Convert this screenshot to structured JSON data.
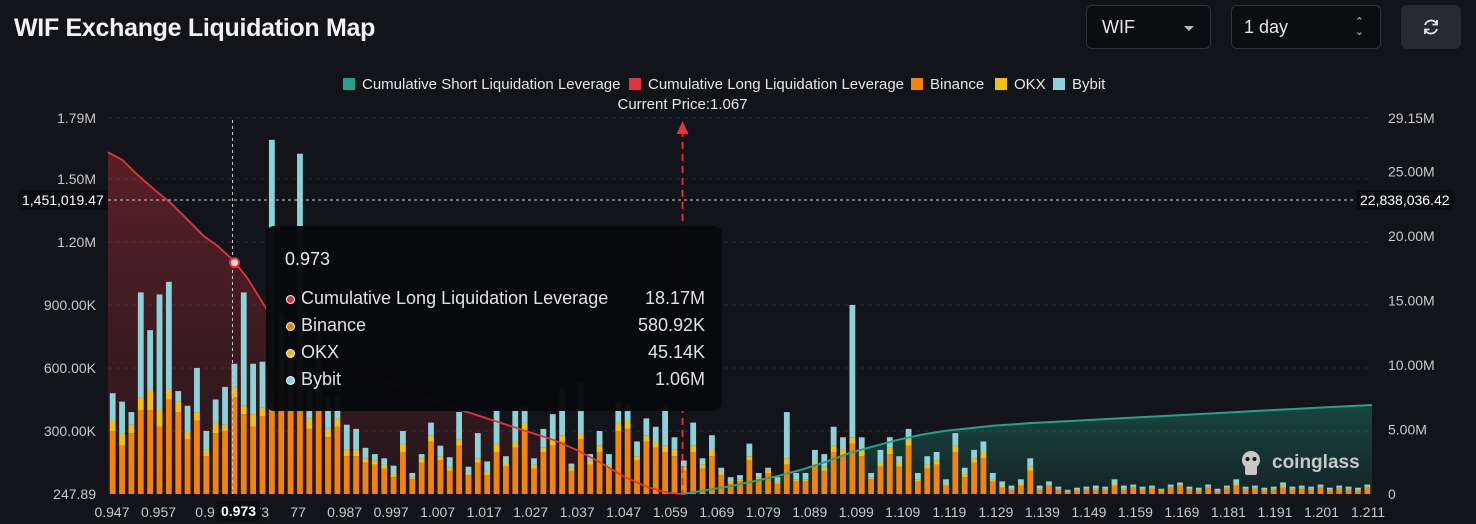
{
  "title": "WIF Exchange Liquidation Map",
  "controls": {
    "coin_select": "WIF",
    "period_select": "1 day",
    "refresh_icon": "refresh-icon"
  },
  "colors": {
    "short_line": "#26a189",
    "long_line": "#e0343e",
    "binance": "#f0840c",
    "okx": "#f2c014",
    "bybit": "#8cd2d8",
    "background": "#121419"
  },
  "legend": [
    {
      "label": "Cumulative Short Liquidation Leverage",
      "color": "#26a189"
    },
    {
      "label": "Cumulative Long Liquidation Leverage",
      "color": "#e0343e"
    },
    {
      "label": "Binance",
      "color": "#f0840c"
    },
    {
      "label": "OKX",
      "color": "#f2c014"
    },
    {
      "label": "Bybit",
      "color": "#8cd2d8"
    }
  ],
  "current_price_label": "Current Price:1.067",
  "crosshair": {
    "left_value": "1,451,019.47",
    "right_value": "22,838,036.42",
    "x_value": "0.973"
  },
  "tooltip": {
    "title": "0.973",
    "rows": [
      {
        "label": "Cumulative Long Liquidation Leverage",
        "value": "18.17M",
        "color": "#e0343e"
      },
      {
        "label": "Binance",
        "value": "580.92K",
        "color": "#f0840c"
      },
      {
        "label": "OKX",
        "value": "45.14K",
        "color": "#f2c014"
      },
      {
        "label": "Bybit",
        "value": "1.06M",
        "color": "#8cd2d8"
      }
    ]
  },
  "watermark": "coinglass",
  "chart_data": {
    "type": "bar",
    "title": "WIF Exchange Liquidation Map",
    "current_price": 1.067,
    "x_tick_labels": [
      "0.947",
      "0.957",
      "0.9",
      "0.973",
      "77",
      "0.987",
      "0.997",
      "1.007",
      "1.017",
      "1.027",
      "1.037",
      "1.047",
      "1.059",
      "1.069",
      "1.079",
      "1.089",
      "1.099",
      "1.109",
      "1.119",
      "1.129",
      "1.139",
      "1.149",
      "1.159",
      "1.169",
      "1.181",
      "1.191",
      "1.201",
      "1.211"
    ],
    "y_left_ticks": [
      "1.79M",
      "1.50M",
      "1.20M",
      "900.00K",
      "600.00K",
      "300.00K",
      "247.89"
    ],
    "y_left_values": [
      1790000,
      1500000,
      1200000,
      900000,
      600000,
      300000,
      247.89
    ],
    "y_right_ticks": [
      "29.15M",
      "25.00M",
      "20.00M",
      "15.00M",
      "10.00M",
      "5.00M",
      "0"
    ],
    "y_right_values": [
      29150000,
      25000000,
      20000000,
      15000000,
      10000000,
      5000000,
      0
    ],
    "left_axis_range": [
      247.89,
      1790000
    ],
    "right_axis_range": [
      0,
      29150000
    ],
    "bar_stack_order": [
      "Binance",
      "OKX",
      "Bybit"
    ],
    "bars": [
      [
        300000,
        50000,
        130000
      ],
      [
        230000,
        60000,
        150000
      ],
      [
        290000,
        40000,
        60000
      ],
      [
        400000,
        60000,
        500000
      ],
      [
        400000,
        100000,
        280000
      ],
      [
        320000,
        80000,
        550000
      ],
      [
        450000,
        50000,
        510000
      ],
      [
        390000,
        50000,
        50000
      ],
      [
        260000,
        40000,
        120000
      ],
      [
        350000,
        40000,
        210000
      ],
      [
        180000,
        30000,
        90000
      ],
      [
        290000,
        50000,
        110000
      ],
      [
        300000,
        30000,
        180000
      ],
      [
        460000,
        50000,
        110000
      ],
      [
        380000,
        40000,
        540000
      ],
      [
        320000,
        60000,
        240000
      ],
      [
        370000,
        40000,
        220000
      ],
      [
        580920,
        45140,
        1060000
      ],
      [
        500000,
        60000,
        300000
      ],
      [
        410000,
        50000,
        210000
      ],
      [
        560000,
        60000,
        1000000
      ],
      [
        310000,
        50000,
        180000
      ],
      [
        400000,
        60000,
        340000
      ],
      [
        270000,
        40000,
        150000
      ],
      [
        320000,
        40000,
        110000
      ],
      [
        180000,
        30000,
        120000
      ],
      [
        180000,
        30000,
        100000
      ],
      [
        150000,
        20000,
        50000
      ],
      [
        140000,
        20000,
        30000
      ],
      [
        120000,
        20000,
        30000
      ],
      [
        80000,
        15000,
        40000
      ],
      [
        200000,
        40000,
        60000
      ],
      [
        70000,
        10000,
        20000
      ],
      [
        150000,
        20000,
        20000
      ],
      [
        250000,
        30000,
        60000
      ],
      [
        160000,
        20000,
        50000
      ],
      [
        110000,
        15000,
        50000
      ],
      [
        230000,
        30000,
        130000
      ],
      [
        90000,
        10000,
        30000
      ],
      [
        150000,
        20000,
        120000
      ],
      [
        90000,
        15000,
        50000
      ],
      [
        200000,
        40000,
        160000
      ],
      [
        130000,
        20000,
        30000
      ],
      [
        220000,
        30000,
        150000
      ],
      [
        300000,
        40000,
        80000
      ],
      [
        120000,
        20000,
        30000
      ],
      [
        200000,
        20000,
        90000
      ],
      [
        230000,
        30000,
        120000
      ],
      [
        250000,
        30000,
        220000
      ],
      [
        110000,
        15000,
        20000
      ],
      [
        260000,
        30000,
        240000
      ],
      [
        140000,
        20000,
        30000
      ],
      [
        200000,
        30000,
        70000
      ],
      [
        120000,
        20000,
        50000
      ],
      [
        300000,
        40000,
        100000
      ],
      [
        310000,
        40000,
        80000
      ],
      [
        160000,
        20000,
        70000
      ],
      [
        250000,
        30000,
        80000
      ],
      [
        220000,
        30000,
        70000
      ],
      [
        200000,
        30000,
        190000
      ],
      [
        180000,
        30000,
        60000
      ],
      [
        110000,
        20000,
        30000
      ],
      [
        200000,
        30000,
        110000
      ],
      [
        120000,
        20000,
        30000
      ],
      [
        180000,
        30000,
        70000
      ],
      [
        90000,
        15000,
        20000
      ],
      [
        50000,
        10000,
        20000
      ],
      [
        60000,
        10000,
        20000
      ],
      [
        160000,
        20000,
        60000
      ],
      [
        70000,
        10000,
        20000
      ],
      [
        100000,
        15000,
        10000
      ],
      [
        50000,
        10000,
        20000
      ],
      [
        140000,
        30000,
        220000
      ],
      [
        60000,
        10000,
        30000
      ],
      [
        60000,
        10000,
        30000
      ],
      [
        130000,
        20000,
        60000
      ],
      [
        110000,
        20000,
        60000
      ],
      [
        200000,
        30000,
        90000
      ],
      [
        180000,
        30000,
        60000
      ],
      [
        240000,
        30000,
        630000
      ],
      [
        180000,
        30000,
        60000
      ],
      [
        70000,
        10000,
        20000
      ],
      [
        130000,
        20000,
        60000
      ],
      [
        190000,
        30000,
        50000
      ],
      [
        130000,
        20000,
        30000
      ],
      [
        230000,
        30000,
        50000
      ],
      [
        60000,
        10000,
        30000
      ],
      [
        120000,
        20000,
        40000
      ],
      [
        140000,
        20000,
        40000
      ],
      [
        40000,
        10000,
        20000
      ],
      [
        200000,
        30000,
        60000
      ],
      [
        80000,
        15000,
        30000
      ],
      [
        150000,
        20000,
        40000
      ],
      [
        170000,
        30000,
        50000
      ],
      [
        60000,
        10000,
        30000
      ],
      [
        30000,
        10000,
        20000
      ],
      [
        20000,
        5000,
        15000
      ],
      [
        40000,
        10000,
        20000
      ],
      [
        110000,
        20000,
        40000
      ],
      [
        20000,
        5000,
        15000
      ],
      [
        40000,
        5000,
        15000
      ],
      [
        20000,
        5000,
        10000
      ],
      [
        10000,
        5000,
        5000
      ],
      [
        15000,
        5000,
        10000
      ],
      [
        20000,
        5000,
        10000
      ],
      [
        20000,
        5000,
        15000
      ],
      [
        20000,
        5000,
        10000
      ],
      [
        40000,
        10000,
        20000
      ],
      [
        20000,
        5000,
        15000
      ],
      [
        30000,
        5000,
        10000
      ],
      [
        20000,
        5000,
        10000
      ],
      [
        25000,
        5000,
        10000
      ],
      [
        15000,
        5000,
        5000
      ],
      [
        30000,
        5000,
        10000
      ],
      [
        40000,
        5000,
        10000
      ],
      [
        20000,
        5000,
        10000
      ],
      [
        15000,
        5000,
        10000
      ],
      [
        30000,
        5000,
        10000
      ],
      [
        10000,
        5000,
        10000
      ],
      [
        25000,
        5000,
        10000
      ],
      [
        40000,
        10000,
        20000
      ],
      [
        20000,
        5000,
        10000
      ],
      [
        25000,
        5000,
        10000
      ],
      [
        15000,
        5000,
        10000
      ],
      [
        20000,
        5000,
        10000
      ],
      [
        30000,
        10000,
        15000
      ],
      [
        20000,
        5000,
        10000
      ],
      [
        25000,
        5000,
        10000
      ],
      [
        20000,
        5000,
        10000
      ],
      [
        30000,
        5000,
        10000
      ],
      [
        15000,
        5000,
        10000
      ],
      [
        25000,
        5000,
        10000
      ],
      [
        20000,
        5000,
        10000
      ],
      [
        15000,
        5000,
        10000
      ],
      [
        30000,
        5000,
        10000
      ]
    ],
    "long_curve": [
      [
        0.947,
        26.5
      ],
      [
        0.95,
        25.9
      ],
      [
        0.953,
        24.8
      ],
      [
        0.957,
        23.5
      ],
      [
        0.96,
        22.6
      ],
      [
        0.963,
        21.5
      ],
      [
        0.967,
        20.0
      ],
      [
        0.97,
        19.2
      ],
      [
        0.973,
        18.17
      ],
      [
        0.976,
        16.8
      ],
      [
        0.98,
        14.4
      ],
      [
        0.983,
        13.1
      ],
      [
        0.987,
        12.0
      ],
      [
        0.99,
        11.2
      ],
      [
        0.995,
        10.3
      ],
      [
        1.0,
        9.4
      ],
      [
        1.005,
        8.7
      ],
      [
        1.01,
        8.0
      ],
      [
        1.015,
        7.2
      ],
      [
        1.02,
        6.6
      ],
      [
        1.025,
        6.0
      ],
      [
        1.03,
        5.4
      ],
      [
        1.035,
        4.8
      ],
      [
        1.04,
        4.2
      ],
      [
        1.045,
        3.4
      ],
      [
        1.05,
        2.4
      ],
      [
        1.055,
        1.3
      ],
      [
        1.06,
        0.5
      ],
      [
        1.064,
        0.1
      ],
      [
        1.067,
        0
      ]
    ],
    "short_curve": [
      [
        1.067,
        0
      ],
      [
        1.072,
        0.3
      ],
      [
        1.077,
        0.6
      ],
      [
        1.082,
        1.0
      ],
      [
        1.087,
        1.4
      ],
      [
        1.092,
        1.9
      ],
      [
        1.097,
        2.5
      ],
      [
        1.102,
        3.2
      ],
      [
        1.107,
        3.7
      ],
      [
        1.112,
        4.2
      ],
      [
        1.117,
        4.6
      ],
      [
        1.122,
        4.9
      ],
      [
        1.127,
        5.1
      ],
      [
        1.132,
        5.3
      ],
      [
        1.14,
        5.5
      ],
      [
        1.15,
        5.7
      ],
      [
        1.16,
        5.9
      ],
      [
        1.17,
        6.1
      ],
      [
        1.18,
        6.3
      ],
      [
        1.19,
        6.5
      ],
      [
        1.2,
        6.7
      ],
      [
        1.211,
        6.9
      ]
    ]
  }
}
